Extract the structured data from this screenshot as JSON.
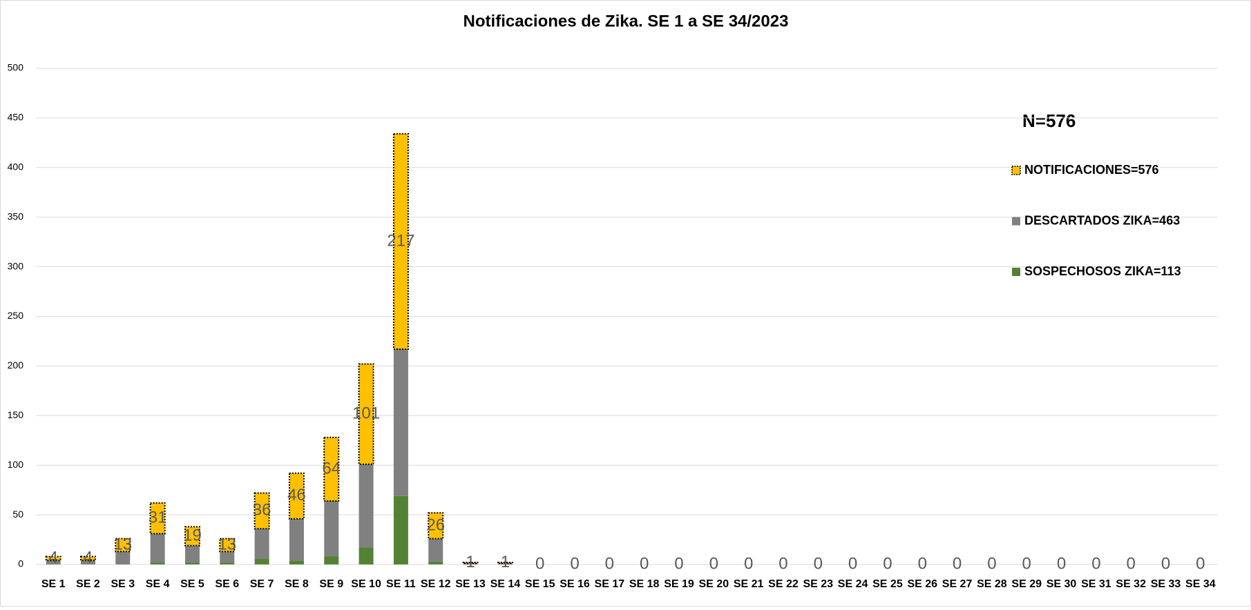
{
  "chart_data": {
    "type": "bar",
    "stacked": true,
    "title": "Notificaciones de Zika. SE 1 a SE 34/2023",
    "annotation": "N=576",
    "categories": [
      "SE 1",
      "SE 2",
      "SE 3",
      "SE 4",
      "SE 5",
      "SE 6",
      "SE 7",
      "SE 8",
      "SE 9",
      "SE 10",
      "SE 11",
      "SE 12",
      "SE 13",
      "SE 14",
      "SE 15",
      "SE 16",
      "SE 17",
      "SE 18",
      "SE 19",
      "SE 20",
      "SE 21",
      "SE 22",
      "SE 23",
      "SE 24",
      "SE 25",
      "SE 26",
      "SE 27",
      "SE 28",
      "SE 29",
      "SE 30",
      "SE 31",
      "SE 32",
      "SE 33",
      "SE 34"
    ],
    "series": [
      {
        "name": "SOSPECHOSOS ZIKA=113",
        "color": "#548235",
        "values": [
          0,
          0,
          0,
          2,
          2,
          2,
          6,
          4,
          8,
          17,
          69,
          3,
          0,
          0,
          0,
          0,
          0,
          0,
          0,
          0,
          0,
          0,
          0,
          0,
          0,
          0,
          0,
          0,
          0,
          0,
          0,
          0,
          0,
          0
        ]
      },
      {
        "name": "DESCARTADOS ZIKA=463",
        "color": "#808080",
        "values": [
          4,
          4,
          13,
          29,
          17,
          11,
          30,
          42,
          56,
          84,
          148,
          23,
          1,
          1,
          0,
          0,
          0,
          0,
          0,
          0,
          0,
          0,
          0,
          0,
          0,
          0,
          0,
          0,
          0,
          0,
          0,
          0,
          0,
          0
        ]
      },
      {
        "name": "NOTIFICACIONES=576",
        "color": "#FFC000",
        "dotted_border": true,
        "data_labels": true,
        "values": [
          4,
          4,
          13,
          31,
          19,
          13,
          36,
          46,
          64,
          101,
          217,
          26,
          1,
          1,
          0,
          0,
          0,
          0,
          0,
          0,
          0,
          0,
          0,
          0,
          0,
          0,
          0,
          0,
          0,
          0,
          0,
          0,
          0,
          0
        ]
      }
    ],
    "ylim": [
      0,
      500
    ],
    "yticks": [
      0,
      50,
      100,
      150,
      200,
      250,
      300,
      350,
      400,
      450,
      500
    ],
    "grid": true,
    "legend": "right"
  }
}
